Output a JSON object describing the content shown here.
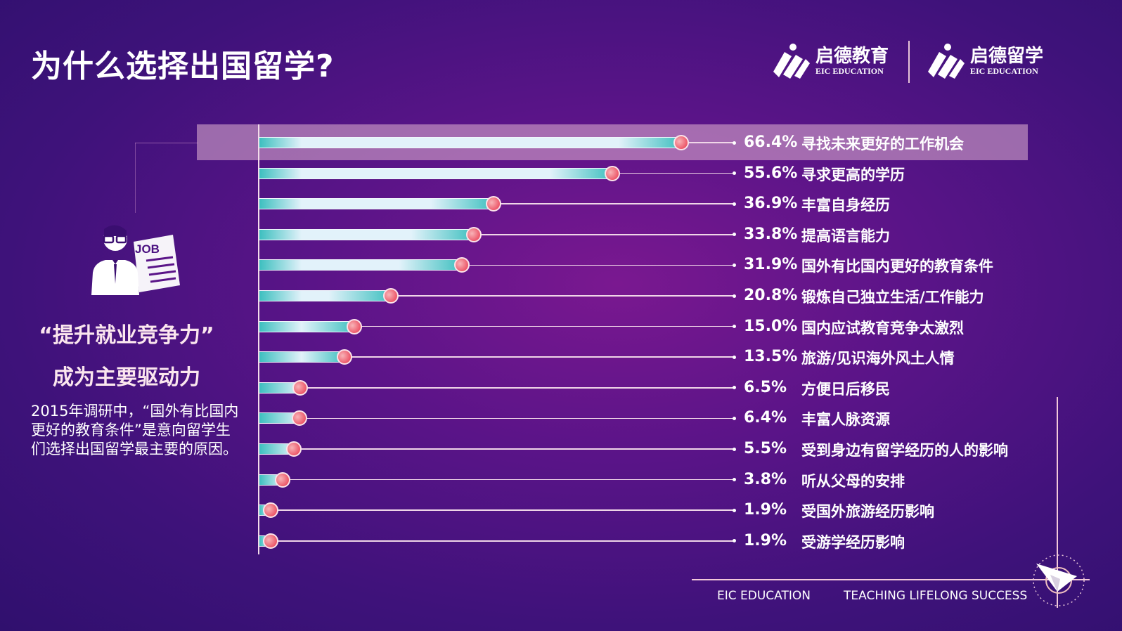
{
  "title": "为什么选择出国留学?",
  "logos": [
    {
      "cn": "启德教育",
      "en": "EIC EDUCATION"
    },
    {
      "cn": "启德留学",
      "en": "EIC EDUCATION"
    }
  ],
  "sidebar": {
    "icon": "job-seeker-icon",
    "job_tag": "JOB",
    "headline_1": "“提升就业竞争力”",
    "headline_2": "成为主要驱动力",
    "note": "2015年调研中，“国外有比国内更好的教育条件”是意向留学生们选择出国留学最主要的原因。"
  },
  "footer": {
    "left": "EIC EDUCATION",
    "right": "TEACHING LIFELONG SUCCESS",
    "icon": "paper-plane-icon"
  },
  "colors": {
    "bar_start": "#3dbfbf",
    "bar_fill": "#e2f2fa",
    "dot": "#e8334a",
    "highlight": "#c9a0c8"
  },
  "chart_data": {
    "type": "bar",
    "orientation": "horizontal",
    "unit": "%",
    "highlighted_index": 0,
    "categories": [
      "寻找未来更好的工作机会",
      "寻求更高的学历",
      "丰富自身经历",
      "提高语言能力",
      "国外有比国内更好的教育条件",
      "锻炼自己独立生活/工作能力",
      "国内应试教育竞争太激烈",
      "旅游/见识海外风土人情",
      "方便日后移民",
      "丰富人脉资源",
      "受到身边有留学经历的人的影响",
      "听从父母的安排",
      "受国外旅游经历影响",
      "受游学经历影响"
    ],
    "values": [
      66.4,
      55.6,
      36.9,
      33.8,
      31.9,
      20.8,
      15.0,
      13.5,
      6.5,
      6.4,
      5.5,
      3.8,
      1.9,
      1.9
    ],
    "labels": [
      "66.4%",
      "55.6%",
      "36.9%",
      "33.8%",
      "31.9%",
      "20.8%",
      "15.0%",
      "13.5%",
      "6.5%",
      "6.4%",
      "5.5%",
      "3.8%",
      "1.9%",
      "1.9%"
    ]
  }
}
